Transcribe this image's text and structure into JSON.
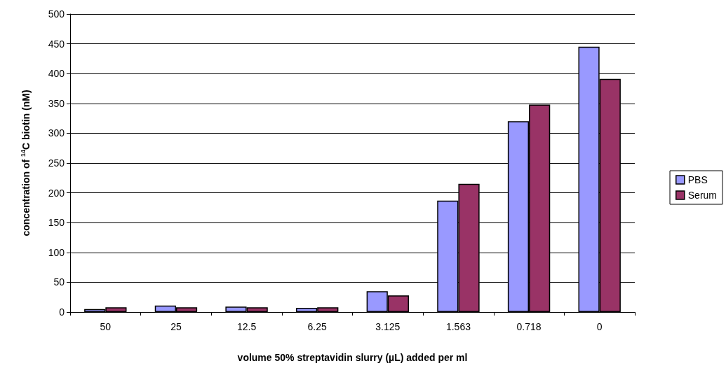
{
  "chart_data": {
    "type": "bar",
    "categories": [
      "50",
      "25",
      "12.5",
      "6.25",
      "3.125",
      "1.563",
      "0.718",
      "0"
    ],
    "series": [
      {
        "name": "PBS",
        "color": "#9999ff",
        "values": [
          5,
          11,
          9,
          7,
          35,
          187,
          320,
          445
        ]
      },
      {
        "name": "Serum",
        "color": "#993366",
        "values": [
          8,
          8,
          8,
          8,
          28,
          215,
          348,
          391
        ]
      }
    ],
    "xlabel": "volume 50% streptavidin slurry (µL) added per ml",
    "ylabel": "concentration of $^{14}$C biotin (nM)",
    "ylim": [
      0,
      500
    ],
    "yticks": [
      0,
      50,
      100,
      150,
      200,
      250,
      300,
      350,
      400,
      450,
      500
    ],
    "grid": "y",
    "legend": "right"
  }
}
